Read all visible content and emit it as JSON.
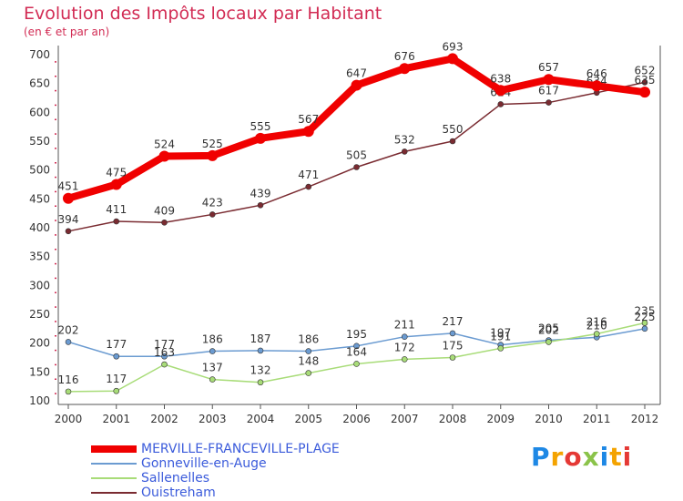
{
  "title": "Evolution des Impôts locaux par Habitant",
  "subtitle": "(en € et par an)",
  "brand": {
    "letters": [
      "P",
      "r",
      "o",
      "x",
      "i",
      "t",
      "i"
    ],
    "colors": [
      "#1e88e5",
      "#f4a300",
      "#e53935",
      "#8bc34a",
      "#1e88e5",
      "#f4a300",
      "#e53935"
    ]
  },
  "chart_data": {
    "type": "line",
    "x": [
      "2000",
      "2001",
      "2002",
      "2003",
      "2004",
      "2005",
      "2006",
      "2007",
      "2008",
      "2009",
      "2010",
      "2011",
      "2012"
    ],
    "ylim": [
      100,
      700
    ],
    "yticks": [
      100,
      150,
      200,
      250,
      300,
      350,
      400,
      450,
      500,
      550,
      600,
      650,
      700
    ],
    "grid": false,
    "legend_position": "bottom-left",
    "series": [
      {
        "name": "MERVILLE-FRANCEVILLE-PLAGE",
        "color": "#f00000",
        "values": [
          451,
          475,
          524,
          525,
          555,
          567,
          647,
          676,
          693,
          638,
          657,
          646,
          635
        ],
        "width": 8,
        "marker": 0
      },
      {
        "name": "Gonneville-en-Auge",
        "color": "#6b9bd1",
        "values": [
          202,
          177,
          177,
          186,
          187,
          186,
          195,
          211,
          217,
          197,
          205,
          210,
          225
        ],
        "width": 1.5,
        "marker": 3
      },
      {
        "name": "Sallenelles",
        "color": "#a8dc78",
        "values": [
          116,
          117,
          163,
          137,
          132,
          148,
          164,
          172,
          175,
          191,
          202,
          216,
          235
        ],
        "width": 1.5,
        "marker": 3
      },
      {
        "name": "Ouistreham",
        "color": "#7a2b31",
        "values": [
          394,
          411,
          409,
          423,
          439,
          471,
          505,
          532,
          550,
          614,
          617,
          634,
          652
        ],
        "width": 1.5,
        "marker": 3
      }
    ]
  }
}
